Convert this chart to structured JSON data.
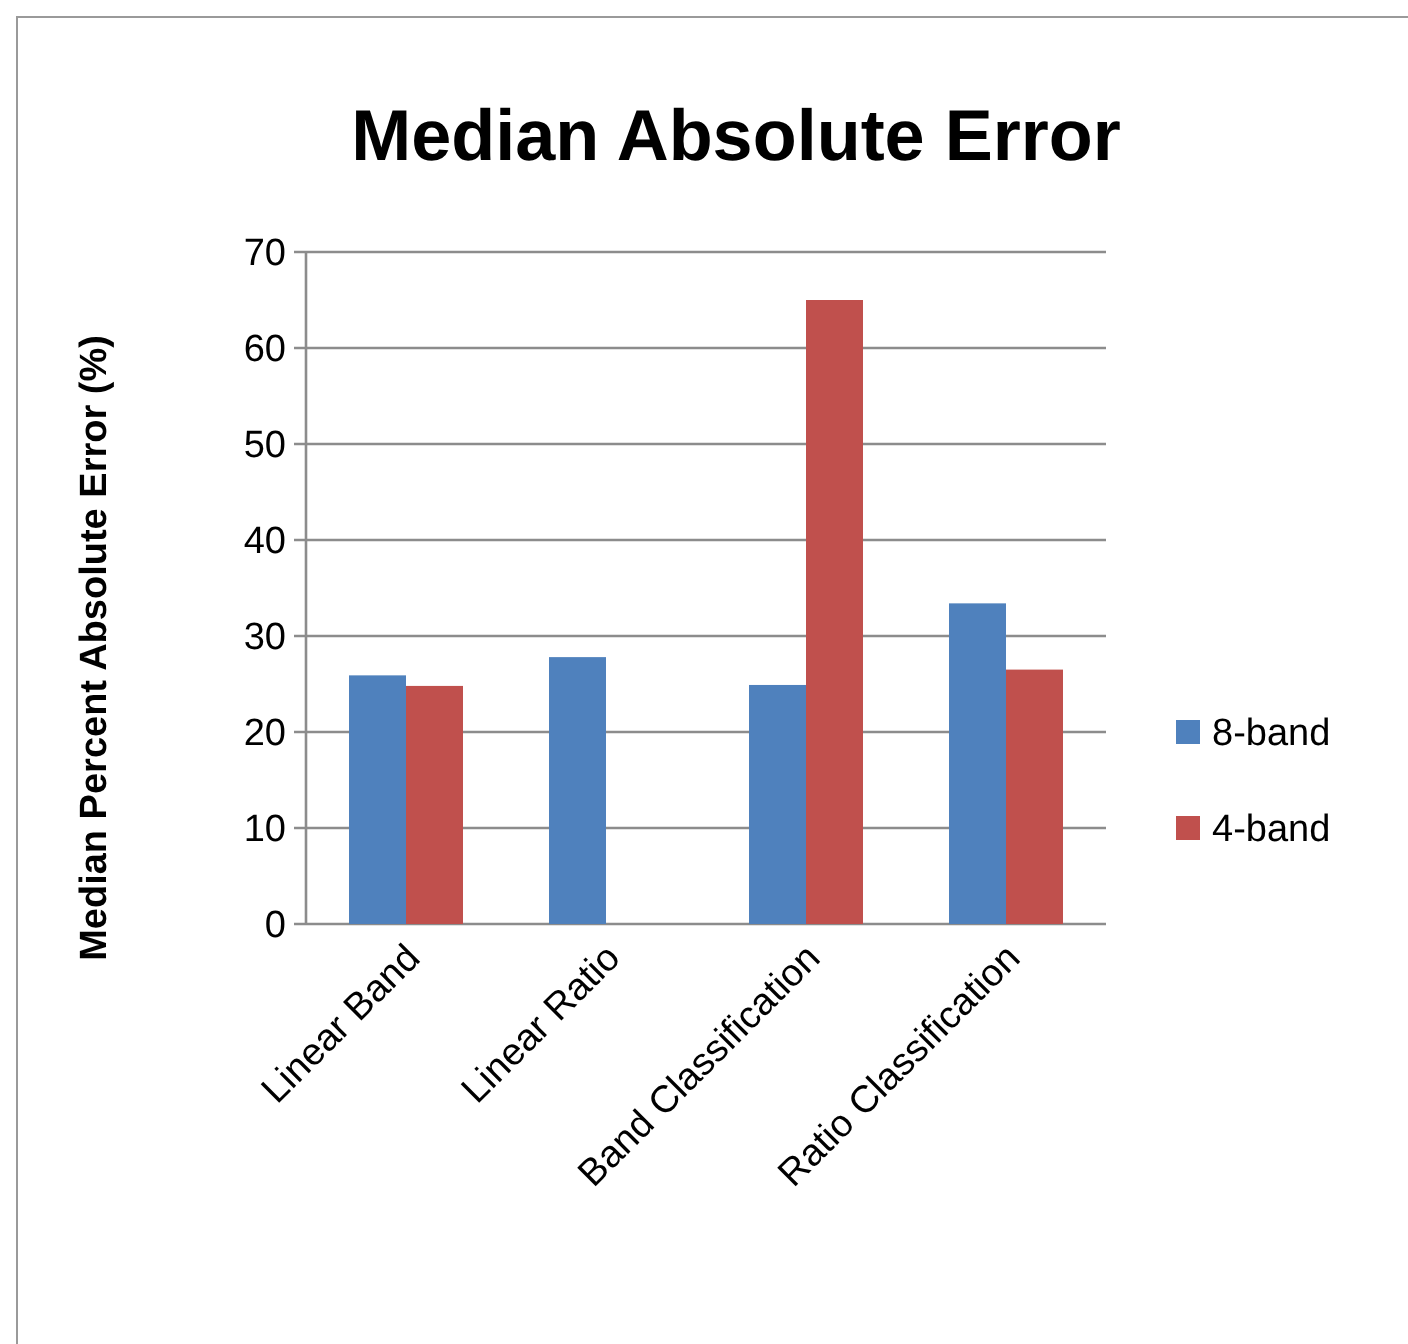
{
  "chart_data": {
    "type": "bar",
    "title": "Median Absolute Error",
    "ylabel": "Median Percent Absolute Error (%)",
    "categories": [
      "Linear Band",
      "Linear Ratio",
      "Band Classification",
      "Ratio Classification"
    ],
    "series": [
      {
        "name": "8-band",
        "color": "#4f81bd",
        "values": [
          25.9,
          27.8,
          24.9,
          33.4
        ]
      },
      {
        "name": "4-band",
        "color": "#c0504d",
        "values": [
          24.8,
          null,
          65.0,
          26.5
        ]
      }
    ],
    "ylim": [
      0,
      70
    ],
    "yticks": [
      0,
      10,
      20,
      30,
      40,
      50,
      60,
      70
    ],
    "grid": "y",
    "legend": "right"
  }
}
